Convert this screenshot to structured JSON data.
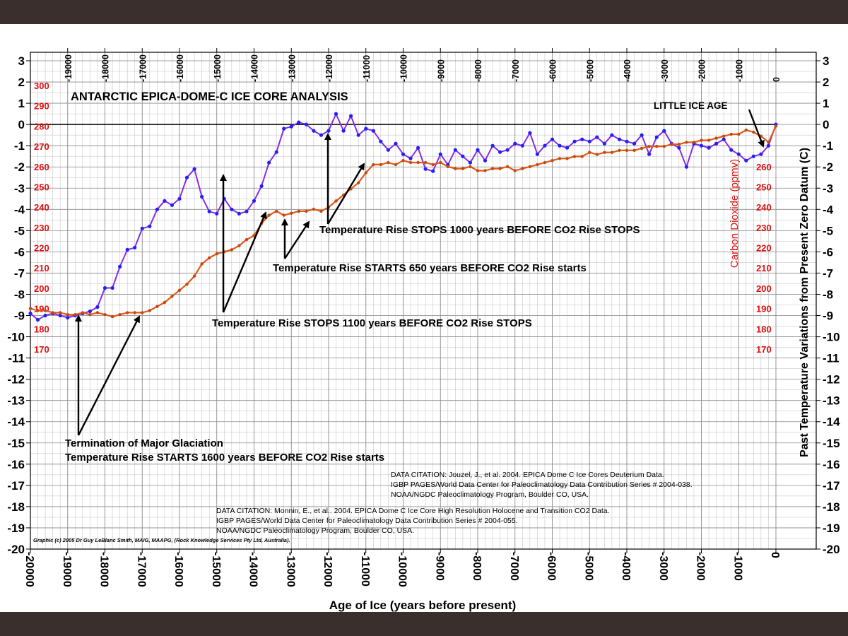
{
  "colors": {
    "background": "#ffffff",
    "frame_band": "#3a2f2d",
    "temperature_line": "#8a2be2",
    "temperature_points": "#1f1fff",
    "co2_line": "#e05a1a",
    "co2_points": "#c14a10",
    "co2_axis_text": "#e01010",
    "grid": "#bdbdbd",
    "text": "#000000"
  },
  "chart_data": {
    "type": "line",
    "title": "ANTARCTIC  EPICA-DOME-C  ICE  CORE  ANALYSIS",
    "xlabel": "Age of Ice (years before present)",
    "ylabel_right": "Past Temperature  Variations  from  Present  Zero  Datum (C)",
    "ylabel_co2": "Carbon Dioxide (ppmv)",
    "xlim": [
      -20000,
      0
    ],
    "ylim": [
      -20,
      3
    ],
    "co2_lim": [
      170,
      300
    ],
    "x_ticks_bottom": [
      "-20000",
      "-19000",
      "-18000",
      "-17000",
      "-16000",
      "-15000",
      "-14000",
      "-13000",
      "-12000",
      "-11000",
      "-10000",
      "-9000",
      "-8000",
      "-7000",
      "-6000",
      "-5000",
      "-4000",
      "-3000",
      "-2000",
      "-1000",
      "0"
    ],
    "x_ticks_bottom_values": [
      -20000,
      -19000,
      -18000,
      -17000,
      -16000,
      -15000,
      -14000,
      -13000,
      -12000,
      -11000,
      -10000,
      -9000,
      -8000,
      -7000,
      -6000,
      -5000,
      -4000,
      -3000,
      -2000,
      -1000,
      0
    ],
    "x_ticks_top": [
      "-19000",
      "-18000",
      "-17000",
      "-16000",
      "-15000",
      "-14000",
      "-13000",
      "-12000",
      "-11000",
      "-10000",
      "-9000",
      "-8000",
      "-7000",
      "-6000",
      "-5000",
      "-4000",
      "-3000",
      "-2000",
      "-1000",
      "0"
    ],
    "x_ticks_top_values": [
      -19000,
      -18000,
      -17000,
      -16000,
      -15000,
      -14000,
      -13000,
      -12000,
      -11000,
      -10000,
      -9000,
      -8000,
      -7000,
      -6000,
      -5000,
      -4000,
      -3000,
      -2000,
      -1000,
      0
    ],
    "y_ticks": [
      "3",
      "2",
      "1",
      "0",
      "-1",
      "-2",
      "-3",
      "-4",
      "-5",
      "-6",
      "-7",
      "-8",
      "-9",
      "-10",
      "-11",
      "-12",
      "-13",
      "-14",
      "-15",
      "-16",
      "-17",
      "-18",
      "-19",
      "-20"
    ],
    "y_ticks_values": [
      3,
      2,
      1,
      0,
      -1,
      -2,
      -3,
      -4,
      -5,
      -6,
      -7,
      -8,
      -9,
      -10,
      -11,
      -12,
      -13,
      -14,
      -15,
      -16,
      -17,
      -18,
      -19,
      -20
    ],
    "co2_ticks": [
      "300",
      "290",
      "280",
      "270",
      "260",
      "250",
      "240",
      "230",
      "220",
      "210",
      "200",
      "190",
      "180",
      "170"
    ],
    "co2_ticks_values": [
      300,
      290,
      280,
      270,
      260,
      250,
      240,
      230,
      220,
      210,
      200,
      190,
      180,
      170
    ],
    "co2_ticks_right": [
      "260",
      "250",
      "240",
      "230",
      "220",
      "210",
      "200",
      "190",
      "180",
      "170"
    ],
    "co2_ticks_right_values": [
      260,
      250,
      240,
      230,
      220,
      210,
      200,
      190,
      180,
      170
    ],
    "series": [
      {
        "name": "Temperature (Deuterium)",
        "axis": "temperature",
        "x": [
          -20000,
          -19800,
          -19600,
          -19400,
          -19200,
          -19000,
          -18800,
          -18600,
          -18400,
          -18200,
          -18000,
          -17800,
          -17600,
          -17400,
          -17200,
          -17000,
          -16800,
          -16600,
          -16400,
          -16200,
          -16000,
          -15800,
          -15600,
          -15400,
          -15200,
          -15000,
          -14800,
          -14600,
          -14400,
          -14200,
          -14000,
          -13800,
          -13600,
          -13400,
          -13200,
          -13000,
          -12800,
          -12600,
          -12400,
          -12200,
          -12000,
          -11800,
          -11600,
          -11400,
          -11200,
          -11000,
          -10800,
          -10600,
          -10400,
          -10200,
          -10000,
          -9800,
          -9600,
          -9400,
          -9200,
          -9000,
          -8800,
          -8600,
          -8400,
          -8200,
          -8000,
          -7800,
          -7600,
          -7400,
          -7200,
          -7000,
          -6800,
          -6600,
          -6400,
          -6200,
          -6000,
          -5800,
          -5600,
          -5400,
          -5200,
          -5000,
          -4800,
          -4600,
          -4400,
          -4200,
          -4000,
          -3800,
          -3600,
          -3400,
          -3200,
          -3000,
          -2800,
          -2600,
          -2400,
          -2200,
          -2000,
          -1800,
          -1600,
          -1400,
          -1200,
          -1000,
          -800,
          -600,
          -400,
          -200,
          0
        ],
        "values": [
          -8.9,
          -9.2,
          -9.0,
          -8.9,
          -9.0,
          -9.1,
          -9.0,
          -8.9,
          -8.8,
          -8.6,
          -7.7,
          -7.7,
          -6.7,
          -5.9,
          -5.8,
          -4.9,
          -4.8,
          -4.0,
          -3.6,
          -3.8,
          -3.5,
          -2.5,
          -2.1,
          -3.4,
          -4.1,
          -4.2,
          -3.5,
          -4.0,
          -4.2,
          -4.1,
          -3.6,
          -2.9,
          -1.8,
          -1.3,
          -0.2,
          -0.1,
          0.1,
          0.0,
          -0.3,
          -0.5,
          -0.3,
          0.5,
          -0.3,
          0.4,
          -0.5,
          -0.2,
          -0.3,
          -0.8,
          -1.2,
          -0.9,
          -1.4,
          -1.6,
          -1.1,
          -2.1,
          -2.2,
          -1.4,
          -1.9,
          -1.2,
          -1.5,
          -1.8,
          -1.2,
          -1.7,
          -1.0,
          -1.3,
          -1.2,
          -0.9,
          -1.0,
          -0.4,
          -1.4,
          -1.0,
          -0.7,
          -1.0,
          -1.1,
          -0.8,
          -0.7,
          -0.8,
          -0.6,
          -0.9,
          -0.5,
          -0.7,
          -0.8,
          -0.9,
          -0.5,
          -1.4,
          -0.6,
          -0.3,
          -0.9,
          -1.1,
          -2.0,
          -0.9,
          -1.0,
          -1.1,
          -0.9,
          -0.7,
          -1.2,
          -1.4,
          -1.7,
          -1.5,
          -1.4,
          -1.0,
          0.0
        ]
      },
      {
        "name": "CO2 (ppmv)",
        "axis": "co2",
        "x": [
          -20000,
          -19800,
          -19600,
          -19400,
          -19200,
          -19000,
          -18800,
          -18600,
          -18400,
          -18200,
          -18000,
          -17800,
          -17600,
          -17400,
          -17200,
          -17000,
          -16800,
          -16600,
          -16400,
          -16200,
          -16000,
          -15800,
          -15600,
          -15400,
          -15200,
          -15000,
          -14800,
          -14600,
          -14400,
          -14200,
          -14000,
          -13800,
          -13600,
          -13400,
          -13200,
          -13000,
          -12800,
          -12600,
          -12400,
          -12200,
          -12000,
          -11800,
          -11600,
          -11400,
          -11200,
          -11000,
          -10800,
          -10600,
          -10400,
          -10200,
          -10000,
          -9800,
          -9600,
          -9400,
          -9200,
          -9000,
          -8800,
          -8600,
          -8400,
          -8200,
          -8000,
          -7800,
          -7600,
          -7400,
          -7200,
          -7000,
          -6800,
          -6600,
          -6400,
          -6200,
          -6000,
          -5800,
          -5600,
          -5400,
          -5200,
          -5000,
          -4800,
          -4600,
          -4400,
          -4200,
          -4000,
          -3800,
          -3600,
          -3400,
          -3200,
          -3000,
          -2800,
          -2600,
          -2400,
          -2200,
          -2000,
          -1800,
          -1600,
          -1400,
          -1200,
          -1000,
          -800,
          -600,
          -400,
          -200,
          0
        ],
        "values": [
          190,
          189,
          189,
          188,
          188,
          187,
          187,
          188,
          187,
          188,
          187,
          186,
          187,
          188,
          188,
          188,
          189,
          191,
          193,
          196,
          199,
          202,
          206,
          212,
          215,
          217,
          218,
          219,
          221,
          224,
          226,
          232,
          236,
          238,
          236,
          237,
          238,
          238,
          239,
          238,
          240,
          243,
          246,
          249,
          252,
          257,
          261,
          261,
          262,
          261,
          263,
          262,
          262,
          262,
          261,
          262,
          260,
          259,
          259,
          260,
          258,
          258,
          259,
          259,
          260,
          258,
          259,
          260,
          261,
          262,
          263,
          264,
          264,
          265,
          265,
          267,
          266,
          267,
          267,
          268,
          268,
          268,
          269,
          270,
          270,
          270,
          271,
          271,
          272,
          272,
          273,
          273,
          274,
          275,
          276,
          276,
          278,
          277,
          275,
          272,
          280
        ]
      }
    ],
    "annotations": [
      {
        "text": "LITTLE ICE AGE"
      },
      {
        "text": "Temperature Rise STOPS 1000 years  BEFORE CO2 Rise STOPS"
      },
      {
        "text": "Temperature Rise STARTS 650 years  BEFORE CO2 Rise starts"
      },
      {
        "text": "Temperature Rise STOPS 1100 years  BEFORE CO2 Rise STOPS"
      },
      {
        "text": "Termination of Major Glaciation"
      },
      {
        "text": "Temperature Rise STARTS 1600 years  BEFORE CO2 Rise starts"
      }
    ],
    "citations": [
      "DATA CITATION: Jouzel, J., et al. 2004. EPICA Dome C Ice Cores Deuterium Data.",
      "IGBP PAGES/World Data Center for Paleoclimatology Data Contribution Series # 2004-038.",
      "NOAA/NGDC Paleoclimatology Program, Boulder CO, USA.",
      "DATA CITATION: Monnin, E., et al.. 2004.  EPICA Dome C Ice Core High Resolution Holocene and Transition CO2 Data.",
      "IGBP PAGES/World Data Center for Paleoclimatology Data Contribution Series # 2004-055.",
      "NOAA/NGDC Paleoclimatology Program, Boulder CO, USA."
    ],
    "copyright": "Graphic (c) 2005 Dr Guy LeBlanc Smith, MAIG, MAAPG, (Rock Knowledge Services Pty Ltd, Australia).",
    "grid": true,
    "zero_line": true
  }
}
